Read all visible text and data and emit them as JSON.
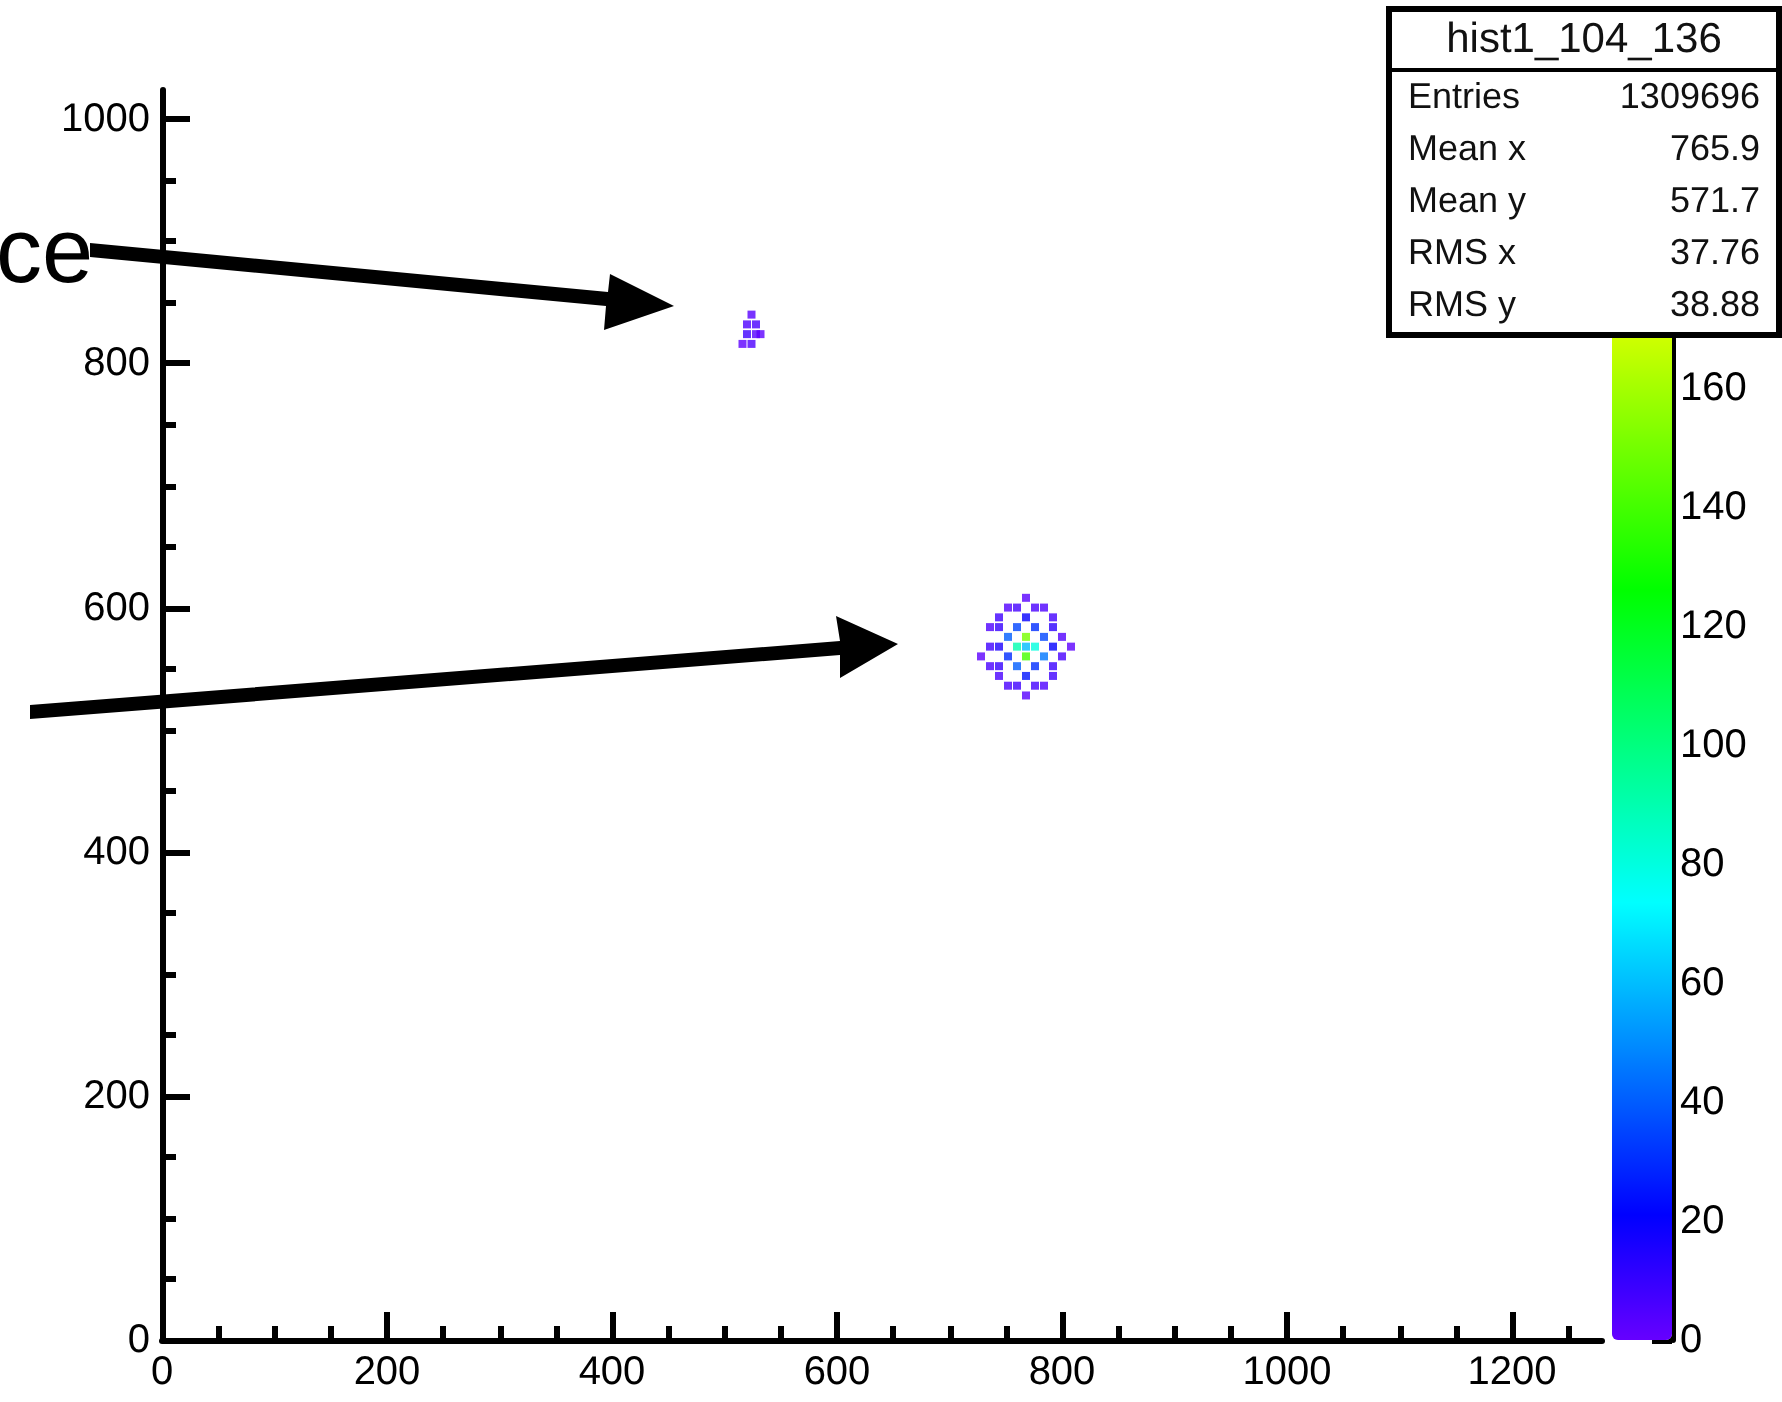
{
  "chart_data": {
    "type": "scatter",
    "title": "hist1_104_136",
    "annotations": [
      "ce",
      "Entries 1309696",
      "Mean x 765.9",
      "Mean y 571.7",
      "RMS x 37.76",
      "RMS y 38.88"
    ],
    "x": [
      768,
      768,
      760,
      776,
      768,
      752,
      784,
      752,
      784,
      760,
      776,
      760,
      776,
      768,
      768,
      744,
      792,
      736,
      736,
      736,
      744,
      744,
      752,
      784,
      792,
      800,
      800,
      792,
      784,
      752,
      768,
      768,
      728,
      808,
      744,
      792,
      744,
      792,
      760,
      776,
      760,
      776,
      520,
      528,
      520,
      528,
      524,
      516,
      524,
      532
    ],
    "values": [
      576,
      560,
      568,
      568,
      568,
      576,
      576,
      560,
      560,
      584,
      584,
      552,
      552,
      592,
      544,
      568,
      568,
      584,
      568,
      552,
      592,
      544,
      600,
      600,
      592,
      576,
      560,
      544,
      536,
      536,
      528,
      608,
      560,
      568,
      584,
      584,
      552,
      552,
      600,
      600,
      536,
      536,
      832,
      832,
      824,
      824,
      840,
      816,
      816,
      824
    ],
    "cvalues": [
      150,
      140,
      90,
      80,
      60,
      40,
      35,
      30,
      45,
      35,
      30,
      40,
      30,
      20,
      25,
      15,
      20,
      5,
      8,
      6,
      8,
      6,
      4,
      5,
      7,
      4,
      6,
      8,
      5,
      6,
      3,
      3,
      2,
      2,
      10,
      12,
      10,
      9,
      7,
      6,
      8,
      7,
      5,
      6,
      8,
      4,
      3,
      2,
      5,
      2
    ],
    "xlim": [
      0,
      1280
    ],
    "xticks": [
      0,
      200,
      400,
      600,
      800,
      1000,
      1200
    ],
    "ylim": [
      0,
      1024
    ],
    "yticks": [
      0,
      200,
      400,
      600,
      800,
      1000
    ],
    "clim": [
      0,
      210
    ],
    "cticks": [
      0,
      20,
      40,
      60,
      80,
      100,
      120,
      140,
      160
    ],
    "marker": "square",
    "grid": false
  }
}
